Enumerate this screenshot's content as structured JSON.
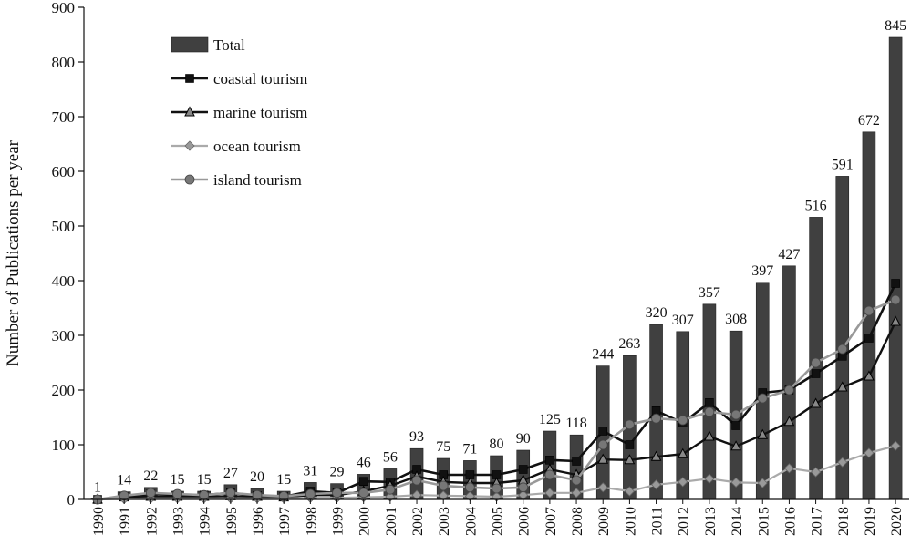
{
  "chart_data": {
    "type": "bar",
    "ylabel": "Number of Publications per year",
    "xlabel": "",
    "ylim": [
      0,
      900
    ],
    "yticks": [
      0,
      100,
      200,
      300,
      400,
      500,
      600,
      700,
      800,
      900
    ],
    "grid": false,
    "legend_position": "top-left",
    "categories": [
      "1990",
      "1991",
      "1992",
      "1993",
      "1994",
      "1995",
      "1996",
      "1997",
      "1998",
      "1999",
      "2000",
      "2001",
      "2002",
      "2003",
      "2004",
      "2005",
      "2006",
      "2007",
      "2008",
      "2009",
      "2010",
      "2011",
      "2012",
      "2013",
      "2014",
      "2015",
      "2016",
      "2017",
      "2018",
      "2019",
      "2020"
    ],
    "series": [
      {
        "name": "Total",
        "kind": "bar",
        "color": "#404040",
        "values": [
          1,
          14,
          22,
          15,
          15,
          27,
          20,
          15,
          31,
          29,
          46,
          56,
          93,
          75,
          71,
          80,
          90,
          125,
          118,
          244,
          263,
          320,
          307,
          357,
          308,
          397,
          427,
          516,
          591,
          672,
          845
        ]
      },
      {
        "name": "coastal tourism",
        "kind": "line",
        "marker": "square",
        "color": "#111111",
        "values": [
          0,
          5,
          10,
          8,
          8,
          12,
          7,
          5,
          15,
          12,
          33,
          32,
          55,
          45,
          45,
          45,
          55,
          72,
          70,
          125,
          100,
          162,
          140,
          177,
          135,
          195,
          200,
          230,
          262,
          295,
          395
        ]
      },
      {
        "name": "marine tourism",
        "kind": "line",
        "marker": "triangle",
        "color": "#111111",
        "values": [
          0,
          4,
          5,
          5,
          5,
          6,
          5,
          4,
          8,
          8,
          15,
          25,
          42,
          32,
          30,
          30,
          35,
          55,
          45,
          73,
          72,
          78,
          83,
          115,
          97,
          118,
          142,
          175,
          205,
          225,
          325
        ]
      },
      {
        "name": "ocean tourism",
        "kind": "line",
        "marker": "diamond",
        "color": "#aaaaaa",
        "values": [
          0,
          1,
          2,
          2,
          2,
          2,
          2,
          2,
          3,
          3,
          4,
          5,
          8,
          7,
          6,
          5,
          8,
          12,
          12,
          22,
          15,
          27,
          32,
          38,
          31,
          30,
          57,
          50,
          68,
          85,
          98
        ]
      },
      {
        "name": "island tourism",
        "kind": "line",
        "marker": "circle",
        "color": "#999999",
        "values": [
          0,
          7,
          12,
          10,
          8,
          12,
          8,
          6,
          10,
          12,
          12,
          18,
          35,
          25,
          22,
          20,
          22,
          45,
          35,
          100,
          137,
          148,
          145,
          160,
          155,
          185,
          200,
          250,
          275,
          345,
          365
        ]
      }
    ]
  }
}
